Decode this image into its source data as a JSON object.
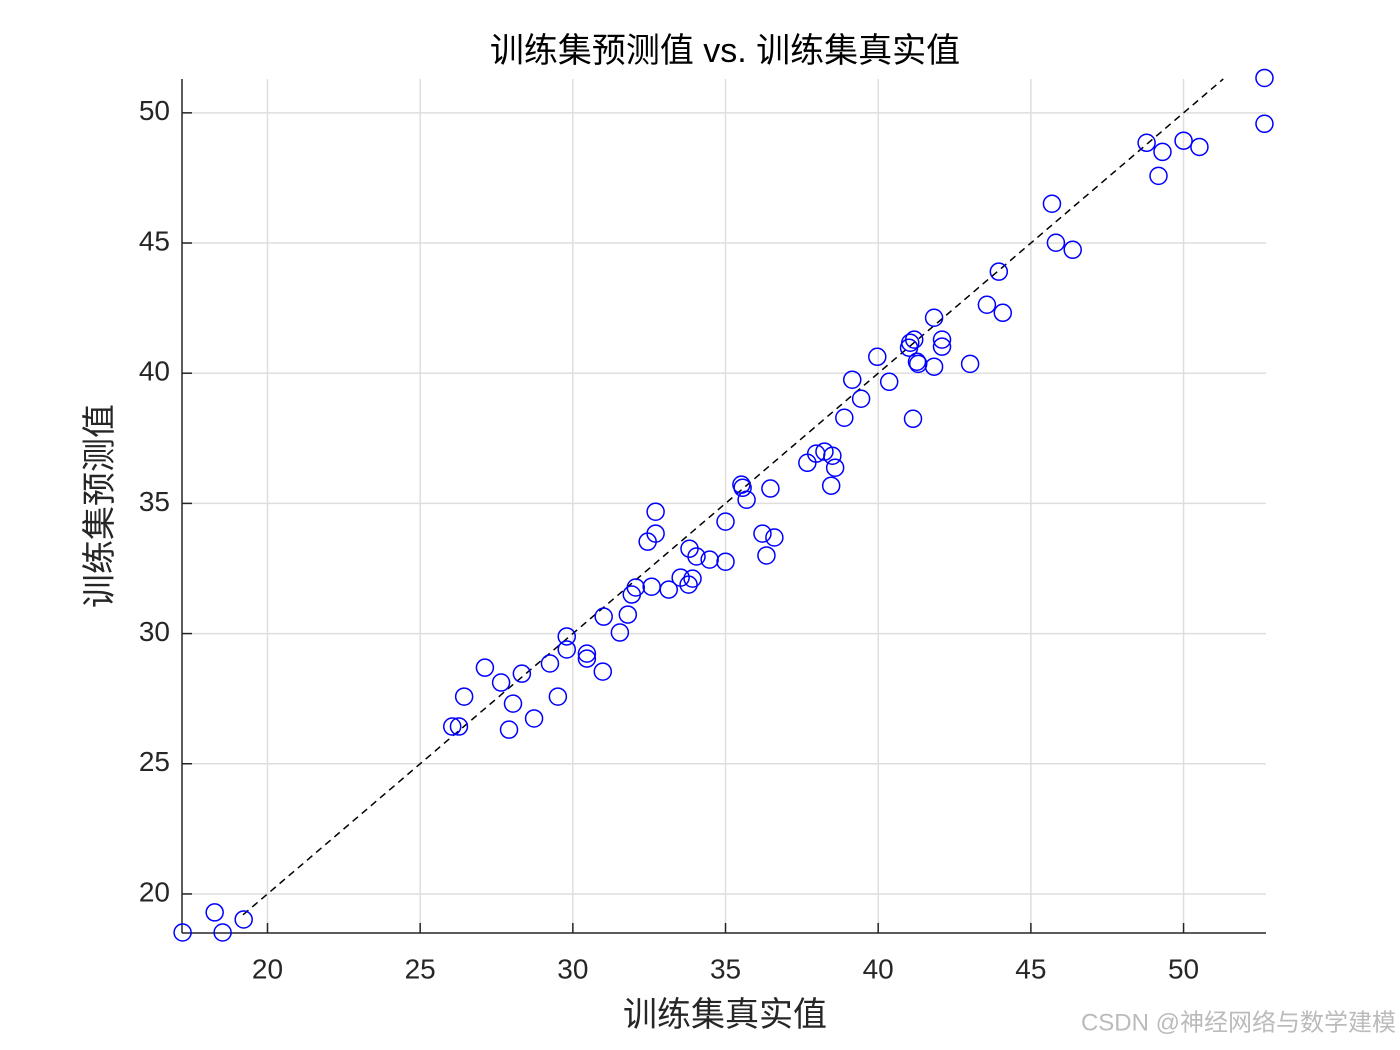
{
  "chart_data": {
    "type": "scatter",
    "title": "训练集预测值 vs. 训练集真实值",
    "x_label": "训练集真实值",
    "y_label": "训练集预测值",
    "watermark": "CSDN @神经网络与数学建模",
    "xlim": [
      17.2,
      52.7
    ],
    "ylim": [
      18.5,
      51.3
    ],
    "xticks": [
      20,
      25,
      30,
      35,
      40,
      45,
      50
    ],
    "yticks": [
      20,
      25,
      30,
      35,
      40,
      45,
      50
    ],
    "grid": true,
    "color": "#0000ff",
    "x": [
      17.22,
      18.27,
      18.53,
      19.22,
      26.05,
      26.27,
      26.44,
      27.12,
      27.65,
      27.91,
      28.04,
      28.33,
      28.73,
      29.25,
      29.51,
      29.8,
      29.8,
      30.46,
      30.46,
      30.98,
      31.01,
      31.54,
      31.8,
      31.93,
      32.06,
      32.45,
      32.58,
      32.71,
      32.71,
      33.14,
      33.53,
      33.79,
      33.82,
      33.92,
      34.05,
      34.48,
      35.0,
      35.0,
      35.52,
      35.56,
      35.69,
      36.21,
      36.34,
      36.47,
      36.6,
      37.68,
      37.97,
      38.24,
      38.5,
      38.46,
      38.59,
      38.89,
      39.15,
      39.44,
      39.97,
      40.36,
      41.01,
      41.05,
      41.18,
      41.14,
      41.27,
      41.31,
      41.83,
      41.83,
      42.09,
      42.09,
      43.01,
      43.56,
      43.95,
      44.08,
      45.69,
      45.82,
      46.37,
      48.79,
      49.18,
      49.31,
      50.0,
      50.52,
      52.65,
      52.65
    ],
    "y": [
      18.52,
      19.29,
      18.52,
      19.02,
      26.43,
      26.43,
      27.58,
      28.69,
      28.12,
      26.31,
      27.31,
      28.46,
      26.74,
      28.85,
      27.58,
      29.39,
      29.89,
      29.23,
      29.04,
      28.54,
      30.65,
      30.04,
      30.73,
      31.5,
      31.77,
      33.53,
      31.8,
      33.84,
      34.68,
      31.69,
      32.15,
      31.88,
      33.26,
      32.11,
      32.96,
      32.84,
      32.76,
      34.3,
      35.72,
      35.6,
      35.14,
      33.84,
      33.0,
      35.57,
      33.69,
      36.56,
      36.91,
      36.99,
      36.83,
      35.68,
      36.37,
      38.29,
      39.75,
      39.02,
      40.63,
      39.67,
      40.98,
      41.17,
      41.29,
      38.25,
      40.44,
      40.36,
      42.13,
      40.25,
      41.29,
      41.02,
      40.36,
      42.63,
      43.9,
      42.32,
      46.51,
      45.01,
      44.74,
      48.85,
      47.58,
      48.5,
      48.93,
      48.69,
      51.34,
      49.58
    ],
    "reference_line": {
      "x": [
        19.2,
        51.3
      ],
      "y": [
        19.2,
        51.3
      ],
      "color": "#000000"
    }
  }
}
